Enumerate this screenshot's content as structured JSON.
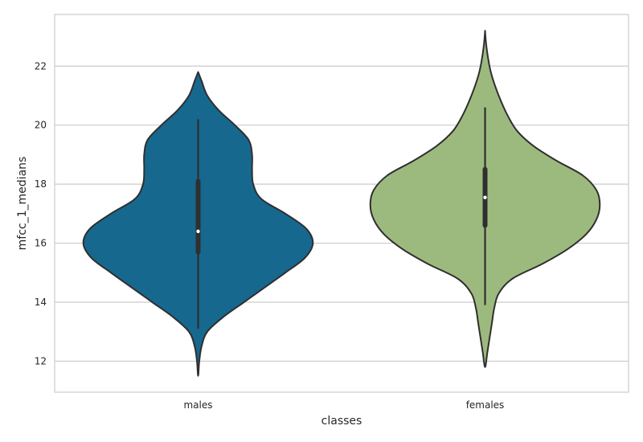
{
  "chart_data": {
    "type": "violin",
    "title": "",
    "xlabel": "classes",
    "ylabel": "mfcc_1_medians",
    "ylim": [
      10.95,
      23.75
    ],
    "yticks": [
      12,
      14,
      16,
      18,
      20,
      22
    ],
    "ytick_labels": [
      "12",
      "14",
      "16",
      "18",
      "20",
      "22"
    ],
    "grid": true,
    "categories": [
      "males",
      "females"
    ],
    "violins": [
      {
        "category": "males",
        "color": "#16688f",
        "min": 11.5,
        "max": 21.8,
        "whisker_low": 13.1,
        "whisker_high": 20.2,
        "q1": 15.7,
        "median": 16.4,
        "q3": 18.1,
        "density_profile": [
          [
            11.5,
            0.0
          ],
          [
            12.0,
            0.01
          ],
          [
            12.5,
            0.03
          ],
          [
            13.0,
            0.08
          ],
          [
            13.5,
            0.22
          ],
          [
            14.0,
            0.4
          ],
          [
            14.5,
            0.58
          ],
          [
            15.0,
            0.76
          ],
          [
            15.5,
            0.93
          ],
          [
            16.0,
            1.0
          ],
          [
            16.5,
            0.94
          ],
          [
            17.0,
            0.76
          ],
          [
            17.5,
            0.55
          ],
          [
            18.0,
            0.48
          ],
          [
            18.5,
            0.47
          ],
          [
            19.0,
            0.47
          ],
          [
            19.5,
            0.44
          ],
          [
            20.0,
            0.32
          ],
          [
            20.5,
            0.18
          ],
          [
            21.0,
            0.08
          ],
          [
            21.5,
            0.03
          ],
          [
            21.8,
            0.0
          ]
        ]
      },
      {
        "category": "females",
        "color": "#9dba7e",
        "min": 11.8,
        "max": 23.2,
        "whisker_low": 13.9,
        "whisker_high": 20.6,
        "q1": 16.6,
        "median": 17.55,
        "q3": 18.5,
        "density_profile": [
          [
            11.8,
            0.0
          ],
          [
            12.3,
            0.02
          ],
          [
            12.8,
            0.04
          ],
          [
            13.3,
            0.06
          ],
          [
            13.8,
            0.08
          ],
          [
            14.3,
            0.12
          ],
          [
            14.8,
            0.24
          ],
          [
            15.3,
            0.5
          ],
          [
            15.8,
            0.72
          ],
          [
            16.3,
            0.88
          ],
          [
            16.8,
            0.97
          ],
          [
            17.3,
            1.0
          ],
          [
            17.8,
            0.97
          ],
          [
            18.3,
            0.85
          ],
          [
            18.8,
            0.62
          ],
          [
            19.3,
            0.42
          ],
          [
            19.8,
            0.28
          ],
          [
            20.3,
            0.2
          ],
          [
            20.8,
            0.14
          ],
          [
            21.3,
            0.09
          ],
          [
            21.8,
            0.05
          ],
          [
            22.3,
            0.025
          ],
          [
            22.8,
            0.008
          ],
          [
            23.2,
            0.0
          ]
        ]
      }
    ]
  }
}
